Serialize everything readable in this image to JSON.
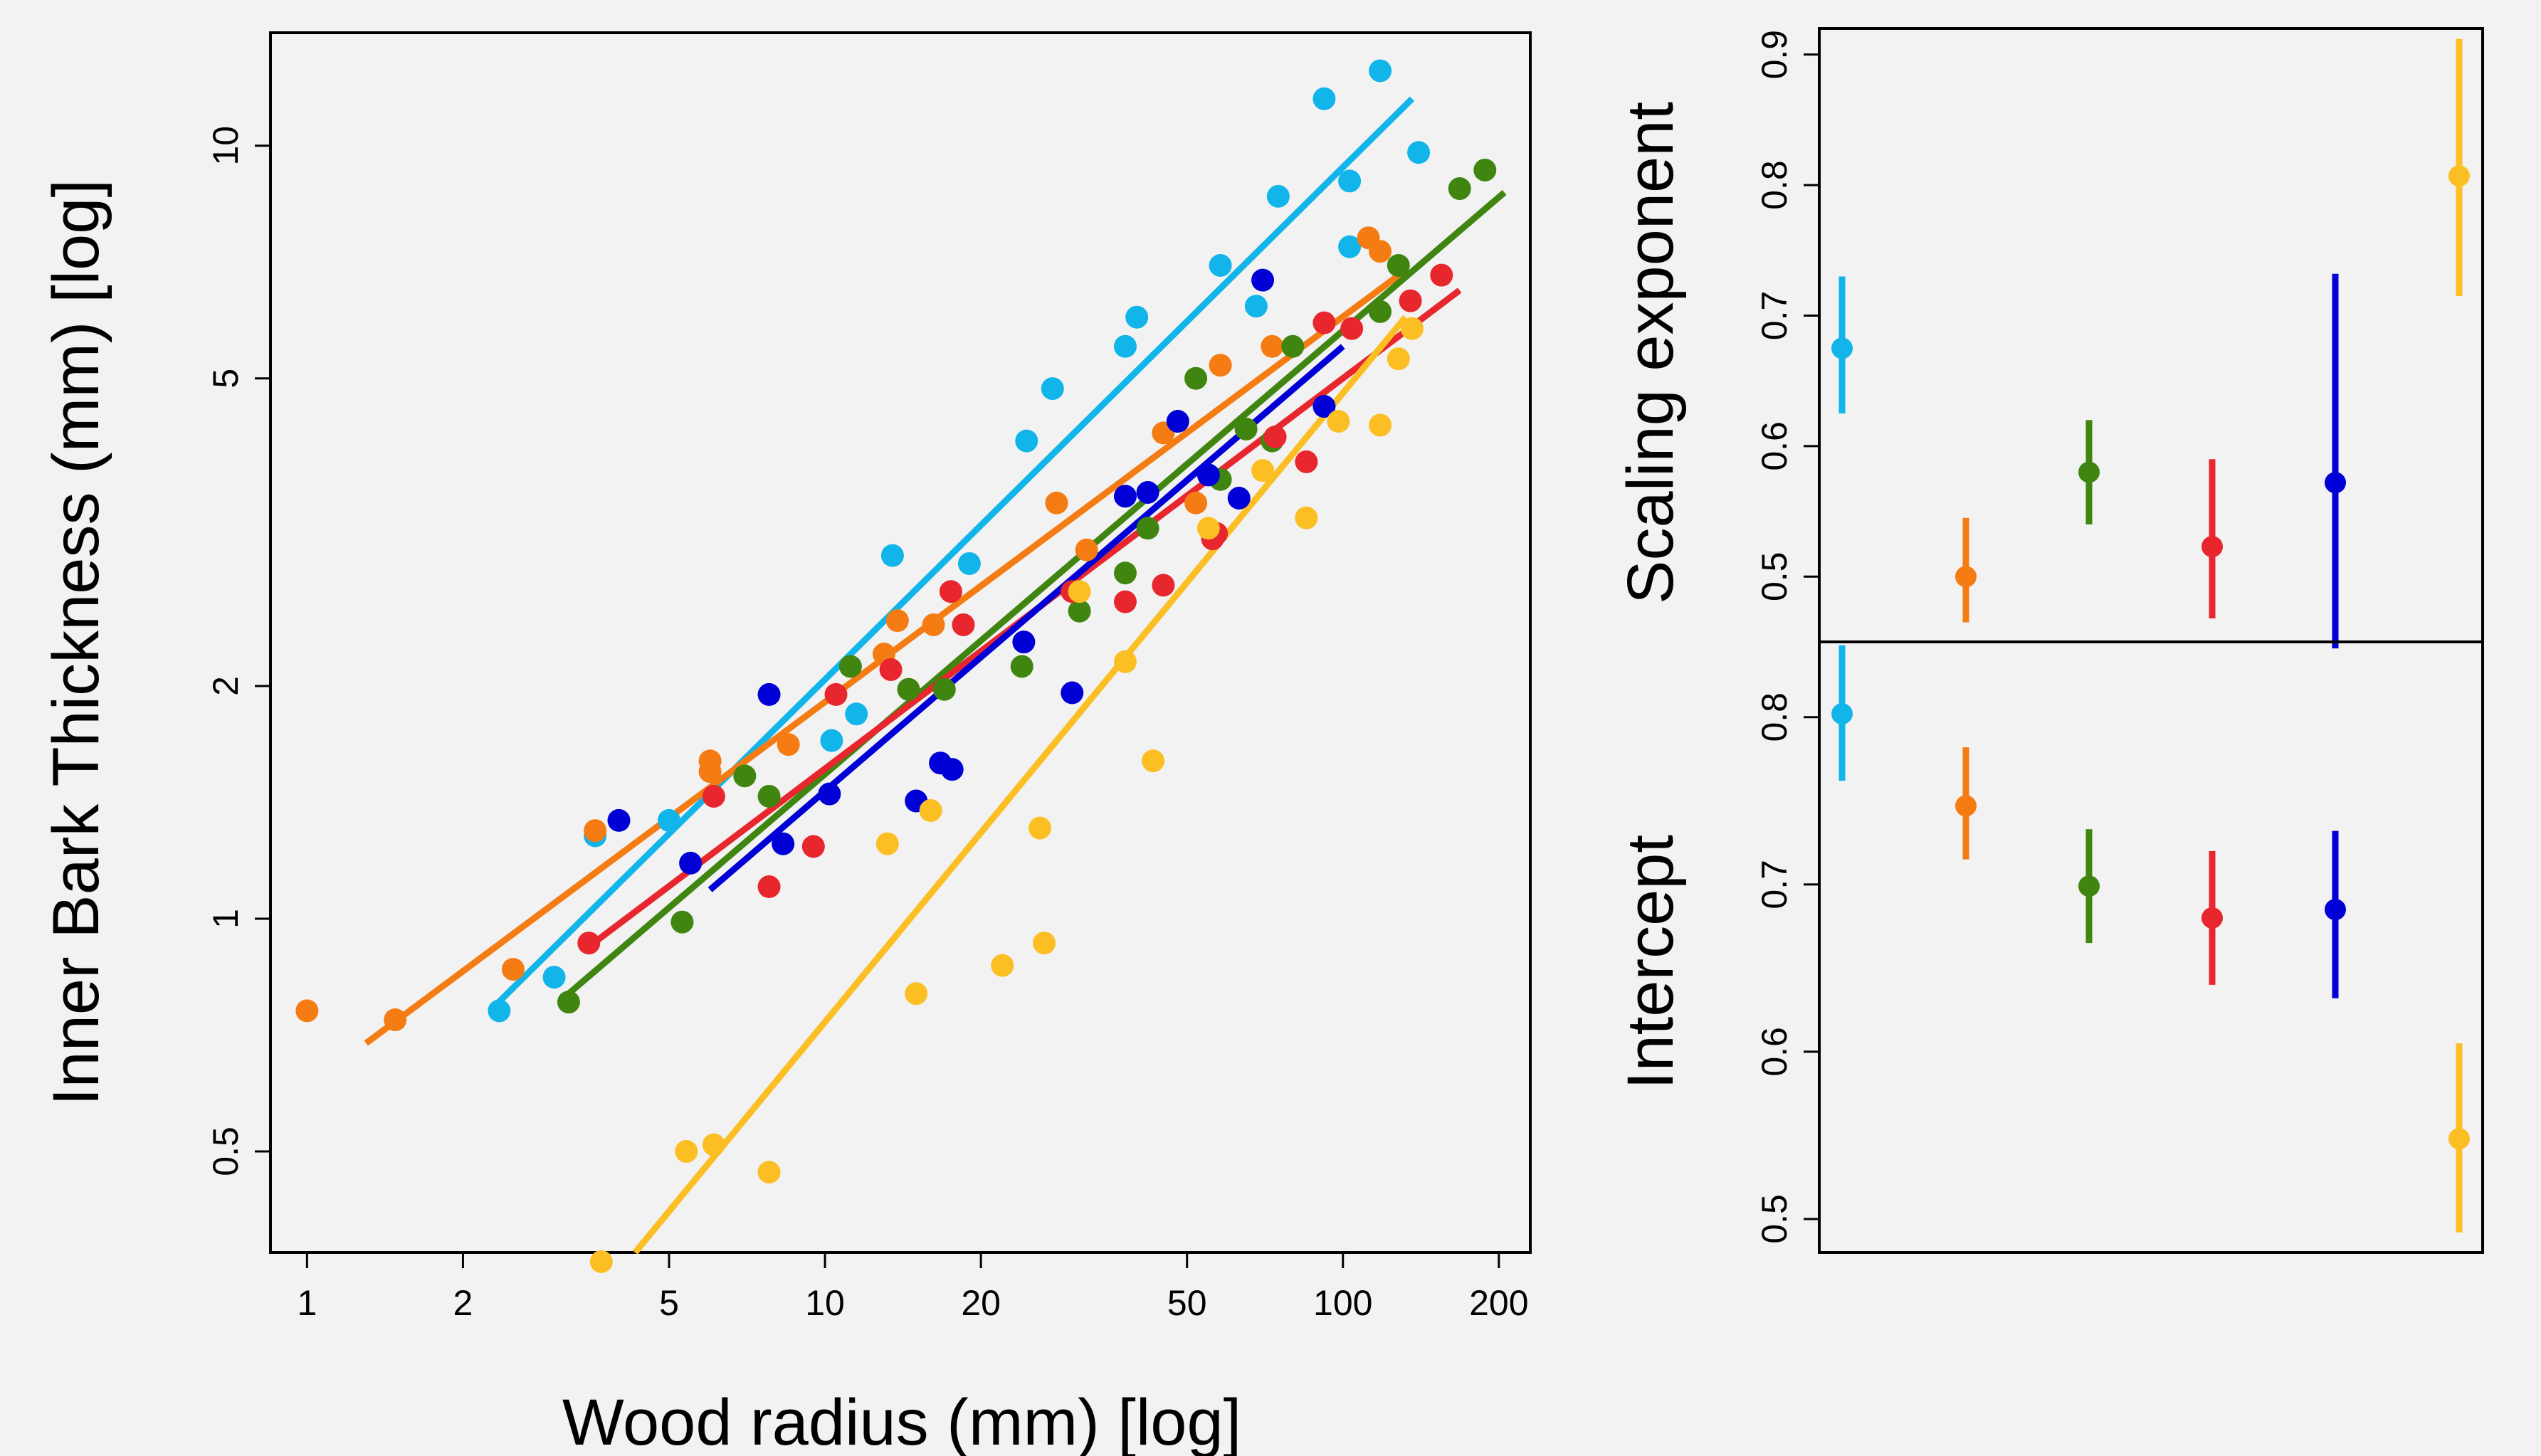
{
  "colors": {
    "series_light_blue": "#12b5ea",
    "series_orange": "#f47c12",
    "series_green": "#3f8510",
    "series_red": "#e8262d",
    "series_blue": "#0000d6",
    "series_yellow": "#fbbf24"
  },
  "chart_data": [
    {
      "type": "scatter",
      "xlabel": "Wood radius (mm) [log]",
      "ylabel": "Inner Bark Thickness (mm) [log]",
      "xscale": "log",
      "yscale": "log",
      "xlim": [
        0.85,
        230
      ],
      "ylim": [
        0.37,
        14
      ],
      "xticks": [
        1,
        2,
        5,
        10,
        20,
        50,
        100,
        200
      ],
      "xtick_labels": [
        "1",
        "2",
        "5",
        "10",
        "20",
        "50",
        "100",
        "200"
      ],
      "yticks": [
        0.5,
        1,
        2,
        5,
        10
      ],
      "ytick_labels": [
        "0.5",
        "1",
        "2",
        "5",
        "10"
      ],
      "grid": false,
      "series": [
        {
          "color": "#12b5ea",
          "points": [
            [
              2.35,
              0.76
            ],
            [
              3.0,
              0.84
            ],
            [
              3.6,
              1.28
            ],
            [
              5.0,
              1.34
            ],
            [
              10.3,
              1.7
            ],
            [
              11.5,
              1.84
            ],
            [
              13.5,
              2.95
            ],
            [
              19.0,
              2.88
            ],
            [
              24.5,
              4.15
            ],
            [
              27.5,
              4.85
            ],
            [
              38.0,
              5.5
            ],
            [
              40.0,
              6.0
            ],
            [
              58.0,
              7.0
            ],
            [
              68.0,
              6.2
            ],
            [
              75.0,
              8.6
            ],
            [
              92.0,
              11.5
            ],
            [
              103.0,
              9.0
            ],
            [
              103.0,
              7.4
            ],
            [
              118.0,
              12.5
            ],
            [
              140.0,
              9.8
            ]
          ],
          "fit": [
            [
              2.3,
              0.77
            ],
            [
              136.0,
              11.5
            ]
          ]
        },
        {
          "color": "#f47c12",
          "points": [
            [
              1.0,
              0.76
            ],
            [
              1.48,
              0.74
            ],
            [
              2.5,
              0.86
            ],
            [
              3.6,
              1.3
            ],
            [
              6.0,
              1.6
            ],
            [
              6.0,
              1.55
            ],
            [
              8.5,
              1.68
            ],
            [
              13.0,
              2.2
            ],
            [
              13.8,
              2.43
            ],
            [
              16.2,
              2.4
            ],
            [
              28.0,
              3.45
            ],
            [
              32.0,
              3.0
            ],
            [
              45.0,
              4.25
            ],
            [
              52.0,
              3.45
            ],
            [
              58.0,
              5.2
            ],
            [
              73.0,
              5.5
            ],
            [
              112.0,
              7.6
            ],
            [
              118.0,
              7.3
            ]
          ],
          "fit": [
            [
              1.3,
              0.69
            ],
            [
              132.0,
              6.9
            ]
          ]
        },
        {
          "color": "#3f8510",
          "points": [
            [
              3.2,
              0.78
            ],
            [
              5.3,
              0.99
            ],
            [
              7.0,
              1.53
            ],
            [
              7.8,
              1.44
            ],
            [
              11.2,
              2.12
            ],
            [
              14.5,
              1.98
            ],
            [
              17.0,
              1.98
            ],
            [
              24.0,
              2.12
            ],
            [
              31.0,
              2.5
            ],
            [
              38.0,
              2.8
            ],
            [
              42.0,
              3.2
            ],
            [
              52.0,
              5.0
            ],
            [
              58.0,
              3.7
            ],
            [
              65.0,
              4.3
            ],
            [
              73.0,
              4.15
            ],
            [
              80.0,
              5.5
            ],
            [
              118.0,
              6.1
            ],
            [
              128.0,
              7.0
            ],
            [
              168.0,
              8.8
            ],
            [
              188.0,
              9.3
            ]
          ],
          "fit": [
            [
              3.2,
              0.8
            ],
            [
              205.0,
              8.7
            ]
          ]
        },
        {
          "color": "#e8262d",
          "points": [
            [
              3.5,
              0.93
            ],
            [
              6.1,
              1.44
            ],
            [
              7.8,
              1.1
            ],
            [
              9.5,
              1.24
            ],
            [
              10.5,
              1.95
            ],
            [
              13.4,
              2.1
            ],
            [
              17.5,
              2.65
            ],
            [
              18.5,
              2.4
            ],
            [
              30.0,
              2.65
            ],
            [
              38.0,
              2.57
            ],
            [
              45.0,
              2.7
            ],
            [
              56.0,
              3.1
            ],
            [
              57.0,
              3.15
            ],
            [
              74.0,
              4.2
            ],
            [
              85.0,
              3.9
            ],
            [
              92.0,
              5.9
            ],
            [
              104.0,
              5.8
            ],
            [
              135.0,
              6.3
            ],
            [
              155.0,
              6.8
            ]
          ],
          "fit": [
            [
              3.5,
              0.92
            ],
            [
              168.0,
              6.5
            ]
          ]
        },
        {
          "color": "#0000d6",
          "points": [
            [
              4.0,
              1.34
            ],
            [
              5.5,
              1.18
            ],
            [
              7.8,
              1.95
            ],
            [
              8.3,
              1.25
            ],
            [
              10.2,
              1.45
            ],
            [
              15.0,
              1.42
            ],
            [
              16.7,
              1.59
            ],
            [
              17.6,
              1.56
            ],
            [
              24.2,
              2.28
            ],
            [
              30.0,
              1.96
            ],
            [
              38.0,
              3.52
            ],
            [
              42.0,
              3.56
            ],
            [
              48.0,
              4.4
            ],
            [
              55.0,
              3.75
            ],
            [
              63.0,
              3.5
            ],
            [
              70.0,
              6.7
            ],
            [
              92.0,
              4.6
            ]
          ],
          "fit": [
            [
              6.0,
              1.09
            ],
            [
              100.0,
              5.5
            ]
          ]
        },
        {
          "color": "#fbbf24",
          "points": [
            [
              3.7,
              0.36
            ],
            [
              5.4,
              0.5
            ],
            [
              6.1,
              0.51
            ],
            [
              7.8,
              0.47
            ],
            [
              13.2,
              1.25
            ],
            [
              15.0,
              0.8
            ],
            [
              16.0,
              1.38
            ],
            [
              22.0,
              0.87
            ],
            [
              26.0,
              1.31
            ],
            [
              26.5,
              0.93
            ],
            [
              31.0,
              2.65
            ],
            [
              38.0,
              2.15
            ],
            [
              43.0,
              1.6
            ],
            [
              55.0,
              3.2
            ],
            [
              70.0,
              3.8
            ],
            [
              85.0,
              3.3
            ],
            [
              98.0,
              4.4
            ],
            [
              118.0,
              4.35
            ],
            [
              128.0,
              5.3
            ],
            [
              136.0,
              5.8
            ]
          ],
          "fit": [
            [
              4.3,
              0.37
            ],
            [
              132.0,
              6.0
            ]
          ]
        }
      ]
    },
    {
      "type": "scatter",
      "ylabel": "Scaling exponent",
      "ylim": [
        0.45,
        0.92
      ],
      "yticks": [
        0.5,
        0.6,
        0.7,
        0.8,
        0.9
      ],
      "ytick_labels": [
        "0.5",
        "0.6",
        "0.7",
        "0.8",
        "0.9"
      ],
      "grid": false,
      "estimates": [
        {
          "color": "#12b5ea",
          "value": 0.675,
          "low": 0.625,
          "high": 0.73
        },
        {
          "color": "#f47c12",
          "value": 0.5,
          "low": 0.465,
          "high": 0.545
        },
        {
          "color": "#3f8510",
          "value": 0.58,
          "low": 0.54,
          "high": 0.62
        },
        {
          "color": "#e8262d",
          "value": 0.523,
          "low": 0.468,
          "high": 0.59
        },
        {
          "color": "#0000d6",
          "value": 0.572,
          "low": 0.445,
          "high": 0.732
        },
        {
          "color": "#fbbf24",
          "value": 0.807,
          "low": 0.715,
          "high": 0.912
        }
      ]
    },
    {
      "type": "scatter",
      "ylabel": "Intercept",
      "ylim": [
        0.48,
        0.845
      ],
      "yticks": [
        0.5,
        0.6,
        0.7,
        0.8
      ],
      "ytick_labels": [
        "0.5",
        "0.6",
        "0.7",
        "0.8"
      ],
      "grid": false,
      "estimates": [
        {
          "color": "#12b5ea",
          "value": 0.802,
          "low": 0.762,
          "high": 0.843
        },
        {
          "color": "#f47c12",
          "value": 0.747,
          "low": 0.715,
          "high": 0.782
        },
        {
          "color": "#3f8510",
          "value": 0.699,
          "low": 0.665,
          "high": 0.733
        },
        {
          "color": "#e8262d",
          "value": 0.68,
          "low": 0.64,
          "high": 0.72
        },
        {
          "color": "#0000d6",
          "value": 0.685,
          "low": 0.632,
          "high": 0.732
        },
        {
          "color": "#fbbf24",
          "value": 0.548,
          "low": 0.492,
          "high": 0.605
        }
      ]
    }
  ]
}
